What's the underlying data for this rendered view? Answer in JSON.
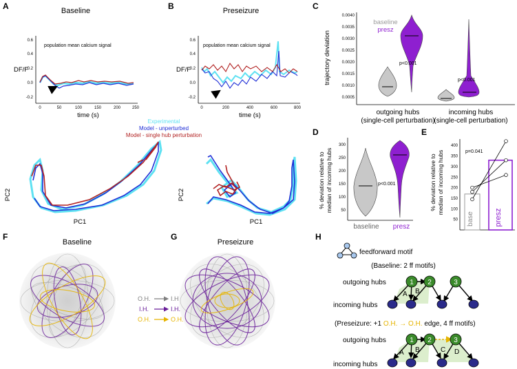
{
  "colors": {
    "experimental": "#5ee1f2",
    "model_unperturbed": "#1f2ed6",
    "model_perturbation": "#b22222",
    "baseline_violin": "#c8c8c8",
    "presz_violin": "#8e1fd0",
    "oh_ih": "#808080",
    "ih_ih": "#6a1f9a",
    "oh_oh": "#e6b400",
    "hub_outgoing": "#3a8a2a",
    "hub_incoming": "#2a2a8a"
  },
  "panel_labels": {
    "a": "A",
    "b": "B",
    "c": "C",
    "d": "D",
    "e": "E",
    "f": "F",
    "g": "G",
    "h": "H"
  },
  "panel_a": {
    "title": "Baseline",
    "annotation": "population mean calcium signal",
    "ylabel": "DF/F",
    "xlabel": "time (s)",
    "yticks": [
      "0.6",
      "0.4",
      "0.2",
      "0.0",
      "-0.2"
    ],
    "xticks": [
      "0",
      "50",
      "100",
      "150",
      "200",
      "250"
    ]
  },
  "panel_b": {
    "title": "Preseizure",
    "annotation": "population mean calcium signal",
    "ylabel": "DF/F",
    "xlabel": "time (s)",
    "yticks": [
      "0.6",
      "0.4",
      "0.2",
      "0.0",
      "-0.2"
    ],
    "xticks": [
      "0",
      "200",
      "400",
      "600",
      "800"
    ]
  },
  "legend_traj": {
    "experimental": "Experimental",
    "unperturbed": "Model - unperturbed",
    "perturbation": "Model - single hub perturbation"
  },
  "pca": {
    "pc1": "PC1",
    "pc2": "PC2"
  },
  "panel_c": {
    "ylabel": "trajectory deviation",
    "yticks": [
      "0.0040",
      "0.0035",
      "0.0030",
      "0.0025",
      "0.0020",
      "0.0015",
      "0.0010",
      "0.0005"
    ],
    "legend_baseline": "baseline",
    "legend_presz": "presz",
    "p_out": "p<0.001",
    "p_in": "p<0.001",
    "group1_line1": "outgoing hubs",
    "group1_line2": "(single-cell perturbation)",
    "group2_line1": "incoming hubs",
    "group2_line2": "(single-cell perturbation)"
  },
  "panel_d": {
    "ylabel_1": "% deviation relative to",
    "ylabel_2": "median of incoming hubs",
    "yticks": [
      "300",
      "250",
      "200",
      "150",
      "100",
      "50"
    ],
    "p": "p<0.001",
    "xlabel_baseline": "baseline",
    "xlabel_presz": "presz"
  },
  "panel_e": {
    "ylabel_1": "% deviation relative to",
    "ylabel_2": "median of incoming hubs",
    "yticks": [
      "400",
      "350",
      "300",
      "250",
      "200",
      "150",
      "100",
      "50"
    ],
    "p": "p=0.041",
    "bar_base": "base",
    "bar_presz": "presz"
  },
  "chart_data": [
    {
      "type": "bar",
      "title": "",
      "xlabel": "",
      "ylabel": "% deviation relative to median of incoming hubs",
      "categories": [
        "base",
        "presz"
      ],
      "values": [
        170,
        330
      ],
      "ylim": [
        0,
        430
      ],
      "paired_points": [
        [
          145,
          420
        ],
        [
          180,
          330
        ],
        [
          200,
          260
        ]
      ]
    }
  ],
  "panel_f": {
    "title": "Baseline"
  },
  "panel_g": {
    "title": "Preseizure"
  },
  "edge_legend": [
    {
      "from": "O.H.",
      "to": "I.H.",
      "color": "#808080"
    },
    {
      "from": "I.H.",
      "to": "I.H.",
      "color": "#6a1f9a"
    },
    {
      "from": "O.H.",
      "to": "O.H.",
      "color": "#e6b400"
    }
  ],
  "panel_h": {
    "motif_label": "feedforward motif",
    "baseline_caption": "(Baseline: 2 ff motifs)",
    "preseizure_caption_start": "(Preseizure: +1 ",
    "preseizure_caption_oh1": "O.H.",
    "preseizure_caption_oh2": "O.H.",
    "preseizure_caption_end": " edge, 4 ff motifs)",
    "outgoing_hubs": "outgoing hubs",
    "incoming_hubs": "incoming hubs",
    "nodes": [
      "1",
      "2",
      "3"
    ],
    "motif_letters_top": [
      "A",
      "B"
    ],
    "motif_letters_bottom": [
      "A",
      "B",
      "C",
      "D"
    ]
  }
}
